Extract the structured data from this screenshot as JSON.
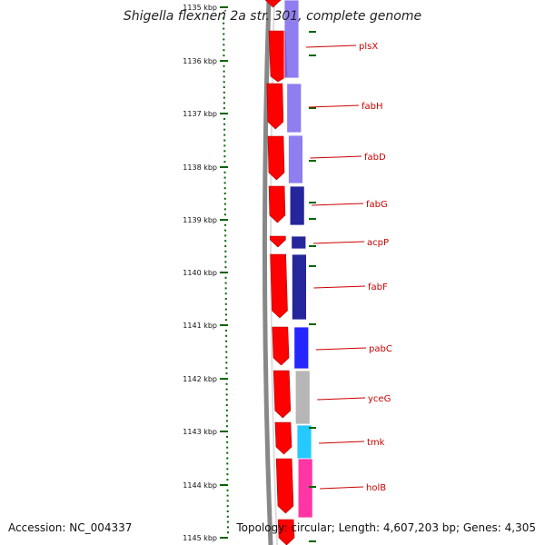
{
  "title": "Shigella flexneri 2a str. 301, complete genome",
  "ticks": [
    {
      "label": "1135 kbp",
      "faded": true
    },
    {
      "label": "1136 kbp"
    },
    {
      "label": "1137 kbp"
    },
    {
      "label": "1138 kbp"
    },
    {
      "label": "1139 kbp"
    },
    {
      "label": "1140 kbp"
    },
    {
      "label": "1141 kbp"
    },
    {
      "label": "1142 kbp"
    },
    {
      "label": "1143 kbp"
    },
    {
      "label": "1144 kbp"
    },
    {
      "label": "1145 kbp"
    }
  ],
  "genes": [
    {
      "name": "plsX",
      "color": "#7b68ee"
    },
    {
      "name": "fabH",
      "color": "#7b68ee"
    },
    {
      "name": "fabD",
      "color": "#7b68ee"
    },
    {
      "name": "fabG",
      "color": "#00008b"
    },
    {
      "name": "acpP",
      "color": "#00008b"
    },
    {
      "name": "fabF",
      "color": "#00008b"
    },
    {
      "name": "pabC",
      "color": "#0000ff"
    },
    {
      "name": "yceG",
      "color": "#aaaaaa"
    },
    {
      "name": "tmk",
      "color": "#00bfff"
    },
    {
      "name": "holB",
      "color": "#ff1493"
    }
  ],
  "footer": {
    "accession": "Accession: NC_004337",
    "stats": "Topology: circular; Length: 4,607,203 bp; Genes: 4,305"
  },
  "colors": {
    "forward_cds": "#ff0000",
    "label": "#cc0000",
    "tick": "#006400",
    "backbone": "#888888"
  }
}
